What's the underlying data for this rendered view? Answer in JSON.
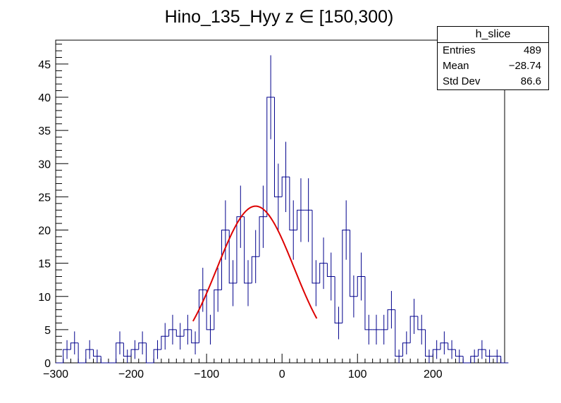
{
  "chart_data": {
    "type": "histogram",
    "title": "Hino_135_Hyy z  ∈ [150,300)",
    "xlabel": "",
    "ylabel": "",
    "xlim": [
      -300,
      295
    ],
    "ylim": [
      0,
      48.6
    ],
    "bin_width": 10,
    "bin_low_edges": [
      -300,
      -290,
      -280,
      -270,
      -260,
      -250,
      -240,
      -230,
      -220,
      -210,
      -200,
      -190,
      -180,
      -170,
      -160,
      -150,
      -140,
      -130,
      -120,
      -110,
      -100,
      -90,
      -80,
      -70,
      -60,
      -50,
      -40,
      -30,
      -20,
      -10,
      0,
      10,
      20,
      30,
      40,
      50,
      60,
      70,
      80,
      90,
      100,
      110,
      120,
      130,
      140,
      150,
      160,
      170,
      180,
      190,
      200,
      210,
      220,
      230,
      240,
      250,
      260,
      270,
      280,
      290
    ],
    "counts": [
      0,
      2,
      3,
      0,
      2,
      1,
      0,
      0,
      3,
      1,
      2,
      3,
      0,
      2,
      4,
      5,
      4,
      5,
      3,
      11,
      5,
      11,
      20,
      12,
      22,
      12,
      16,
      22,
      40,
      25,
      28,
      20,
      23,
      23,
      12,
      15,
      13,
      6,
      20,
      10,
      13,
      5,
      5,
      5,
      8,
      1,
      3,
      7,
      5,
      1,
      2,
      3,
      2,
      1,
      0,
      1,
      2,
      1,
      1,
      0
    ],
    "errors": "sqrt(counts)",
    "fit": {
      "type": "gaussian",
      "x_range": [
        -118,
        46
      ],
      "amplitude": 23.6,
      "mean": -35,
      "sigma": 51
    },
    "xticks": [
      -300,
      -200,
      -100,
      0,
      100,
      200
    ],
    "xtick_labels": [
      "−300",
      "−200",
      "−100",
      "0",
      "100",
      "200"
    ],
    "yticks": [
      0,
      5,
      10,
      15,
      20,
      25,
      30,
      35,
      40,
      45
    ],
    "ytick_labels": [
      "0",
      "5",
      "10",
      "15",
      "20",
      "25",
      "30",
      "35",
      "40",
      "45"
    ],
    "colors": {
      "histogram": "#00008b",
      "fit": "#dd0000",
      "axes": "#000000"
    },
    "grid": false
  },
  "stats_box": {
    "name": "h_slice",
    "entries_label": "Entries",
    "entries_value": "489",
    "mean_label": "Mean",
    "mean_value": "−28.74",
    "std_label": "Std Dev",
    "std_value": "86.6"
  }
}
